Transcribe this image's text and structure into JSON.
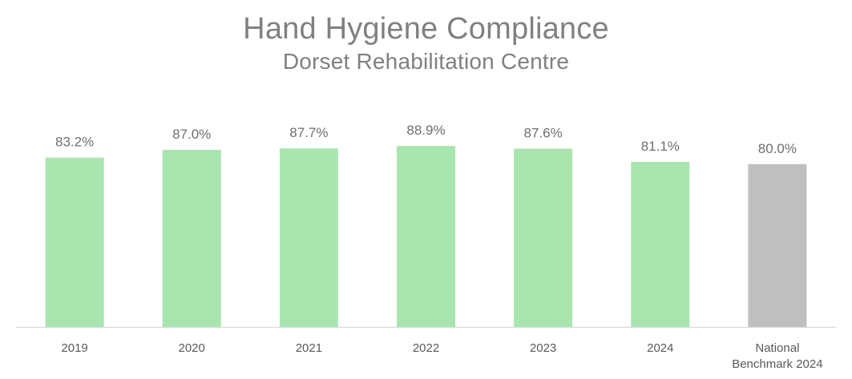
{
  "chart_data": {
    "type": "bar",
    "title": "Hand Hygiene Compliance",
    "subtitle": "Dorset Rehabilitation Centre",
    "xlabel": "",
    "ylabel": "",
    "ylim": [
      0,
      100
    ],
    "grid": false,
    "legend": "none",
    "categories": [
      "2019",
      "2020",
      "2021",
      "2022",
      "2023",
      "2024",
      "National Benchmark 2024"
    ],
    "category_lines": [
      [
        "2019"
      ],
      [
        "2020"
      ],
      [
        "2021"
      ],
      [
        "2022"
      ],
      [
        "2023"
      ],
      [
        "2024"
      ],
      [
        "National",
        "Benchmark 2024"
      ]
    ],
    "values": [
      83.2,
      87.0,
      87.7,
      88.9,
      87.6,
      81.1,
      80.0
    ],
    "data_labels": [
      "83.2%",
      "87.0%",
      "87.7%",
      "88.9%",
      "87.6%",
      "81.1%",
      "80.0%"
    ],
    "colors": {
      "bar": "#a9e5ae",
      "benchmark_bar": "#bfbfbf",
      "axis": "#d9d9d9"
    },
    "bar_color_keys": [
      "bar",
      "bar",
      "bar",
      "bar",
      "bar",
      "bar",
      "benchmark_bar"
    ]
  }
}
